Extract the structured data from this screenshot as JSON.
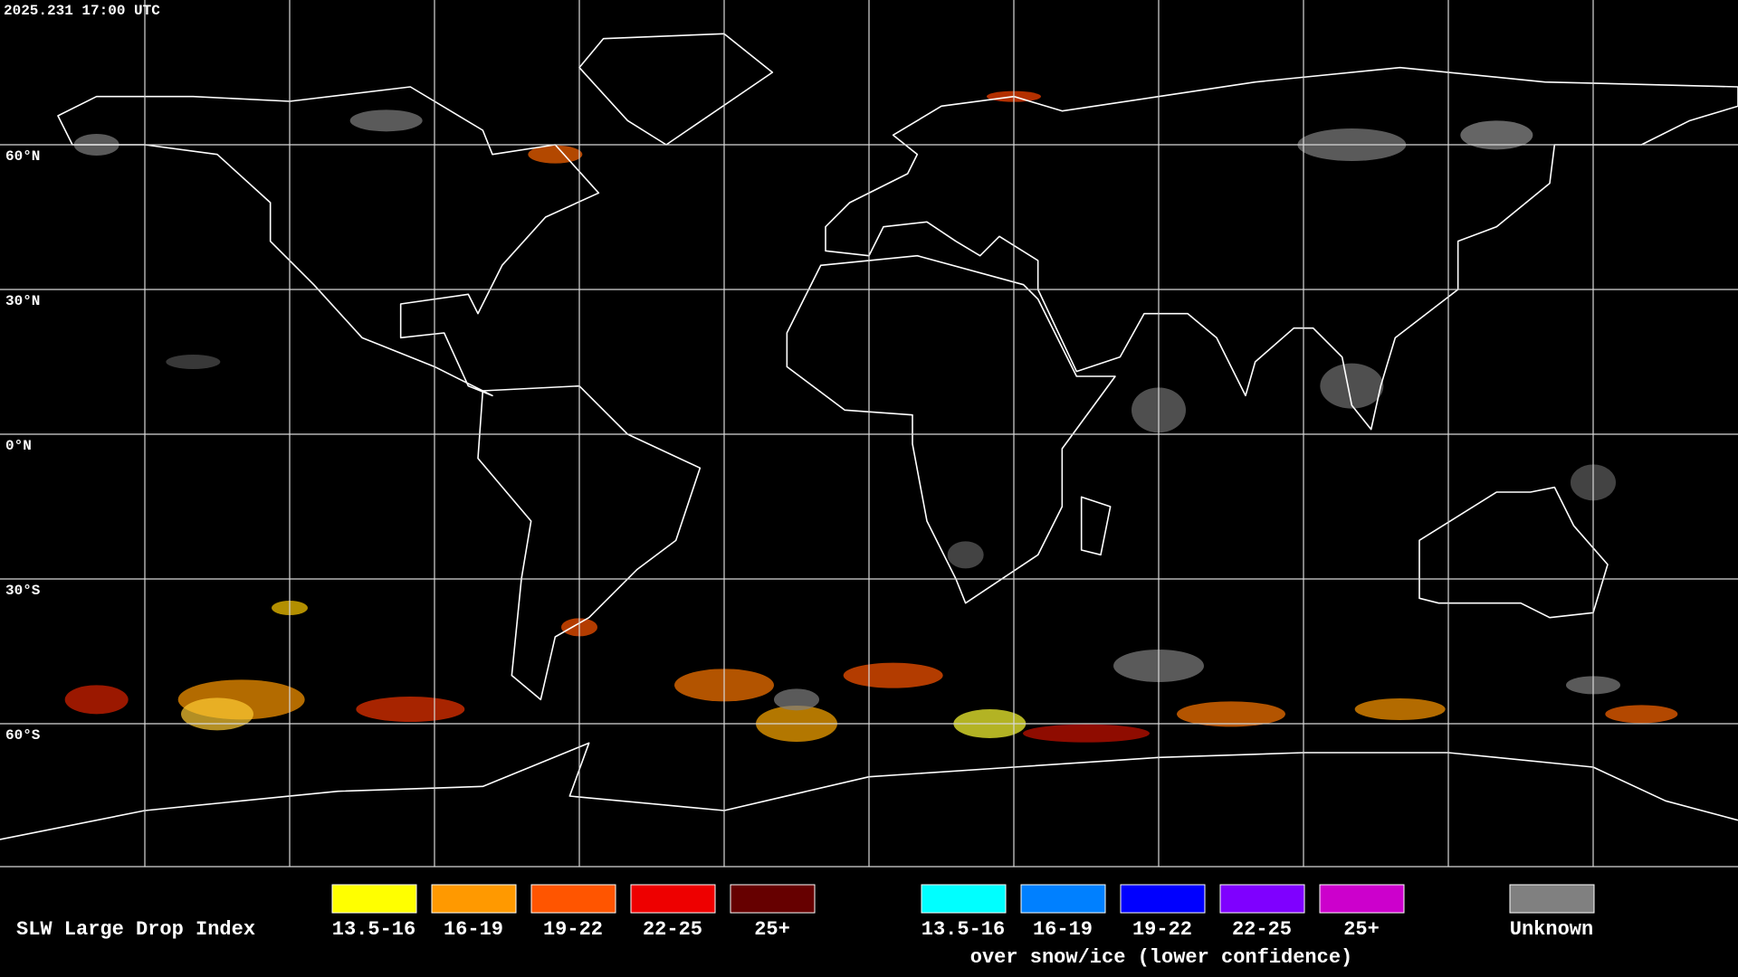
{
  "header": {
    "timestamp": "2025.231 17:00 UTC"
  },
  "map": {
    "latitude_labels": [
      "60°N",
      "30°N",
      "0°N",
      "30°S",
      "60°S"
    ]
  },
  "legend": {
    "title": "SLW Large Drop Index",
    "items": [
      {
        "label": "13.5-16",
        "color": "#ffff00"
      },
      {
        "label": "16-19",
        "color": "#ff9900"
      },
      {
        "label": "19-22",
        "color": "#ff5500"
      },
      {
        "label": "22-25",
        "color": "#ee0000"
      },
      {
        "label": "25+",
        "color": "#660000"
      }
    ],
    "snow_ice_items": [
      {
        "label": "13.5-16",
        "color": "#00ffff"
      },
      {
        "label": "16-19",
        "color": "#0080ff"
      },
      {
        "label": "19-22",
        "color": "#0000ff"
      },
      {
        "label": "22-25",
        "color": "#7f00ff"
      },
      {
        "label": "25+",
        "color": "#cc00cc"
      }
    ],
    "snow_ice_caption": "over snow/ice (lower confidence)",
    "unknown": {
      "label": "Unknown",
      "color": "#808080"
    }
  }
}
